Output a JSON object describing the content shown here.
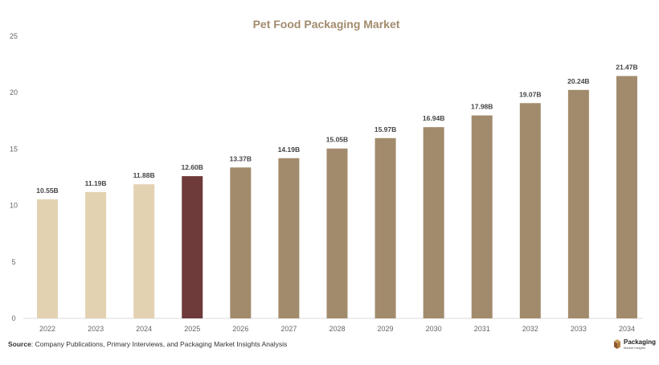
{
  "chart_data": {
    "type": "bar",
    "title": "Pet Food Packaging Market",
    "categories": [
      "2022",
      "2023",
      "2024",
      "2025",
      "2026",
      "2027",
      "2028",
      "2029",
      "2030",
      "2031",
      "2032",
      "2033",
      "2034"
    ],
    "values": [
      10.55,
      11.19,
      11.88,
      12.6,
      13.37,
      14.19,
      15.05,
      15.97,
      16.94,
      17.98,
      19.07,
      20.24,
      21.47
    ],
    "data_labels": [
      "10.55B",
      "11.19B",
      "11.88B",
      "12.60B",
      "13.37B",
      "14.19B",
      "15.05B",
      "15.97B",
      "16.94B",
      "17.98B",
      "19.07B",
      "20.24B",
      "21.47B"
    ],
    "ylim": [
      0,
      25
    ],
    "yticks": [
      "0",
      "5",
      "10",
      "15",
      "20",
      "25"
    ],
    "grid": false,
    "colors": {
      "historical": "#e3d2b2",
      "current": "#6e3a3a",
      "forecast": "#a28b6c",
      "title": "#a28b6c"
    },
    "bar_color_groups": [
      "historical",
      "historical",
      "historical",
      "current",
      "forecast",
      "forecast",
      "forecast",
      "forecast",
      "forecast",
      "forecast",
      "forecast",
      "forecast",
      "forecast"
    ]
  },
  "footer": {
    "source_label": "Source",
    "source_text": ": Company Publications, Primary Interviews, and Packaging Market Insights Analysis"
  },
  "logo": {
    "main": "Packaging",
    "sub": "Market Insights",
    "icon": "box-icon"
  }
}
